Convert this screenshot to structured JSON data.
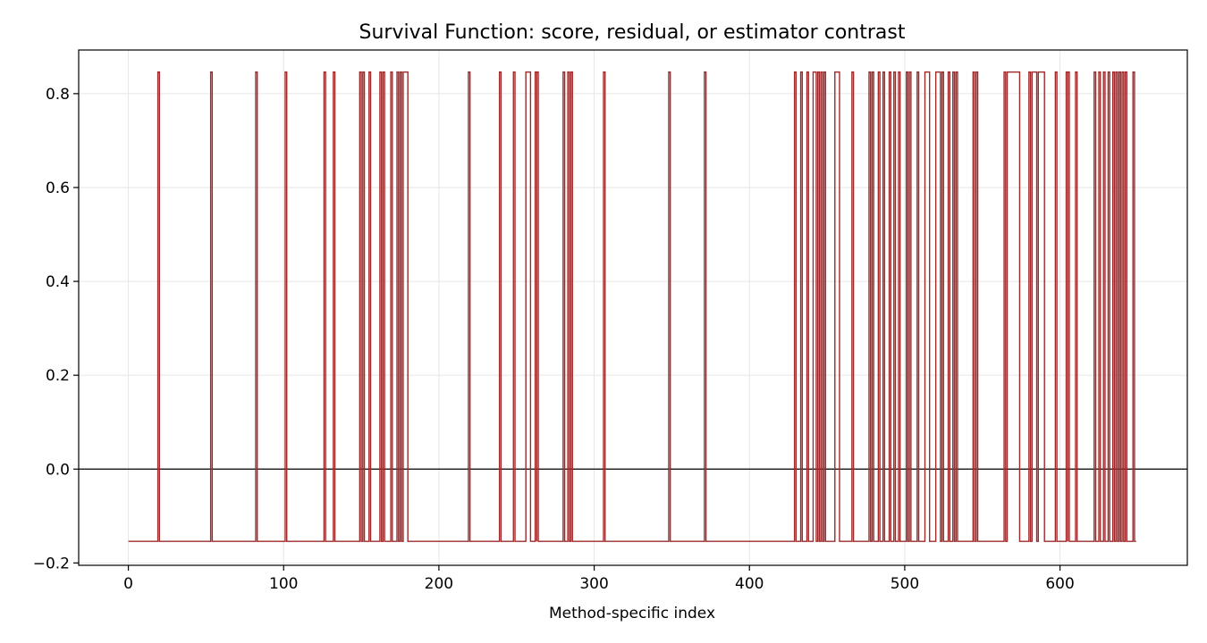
{
  "chart_data": {
    "type": "line",
    "title": "Survival Function: score, residual, or estimator contrast",
    "xlabel": "Method-specific index",
    "ylabel": "",
    "xlim": [
      -32,
      682
    ],
    "ylim": [
      -0.205,
      0.893
    ],
    "x_ticks": [
      0,
      100,
      200,
      300,
      400,
      500,
      600
    ],
    "x_tick_labels": [
      "0",
      "100",
      "200",
      "300",
      "400",
      "500",
      "600"
    ],
    "y_ticks": [
      -0.2,
      0.0,
      0.2,
      0.4,
      0.6,
      0.8
    ],
    "y_tick_labels": [
      "−0.2",
      "0.0",
      "0.2",
      "0.4",
      "0.6",
      "0.8"
    ],
    "grid": true,
    "reference_line_y": 0.0,
    "series_color": "#9e2a2b",
    "low_value": -0.154,
    "high_value": 0.846,
    "x_range": [
      0,
      649
    ],
    "high_runs": [
      [
        19,
        20
      ],
      [
        53,
        54
      ],
      [
        82,
        83
      ],
      [
        101,
        102
      ],
      [
        126,
        127
      ],
      [
        132,
        133
      ],
      [
        149,
        150
      ],
      [
        151,
        152
      ],
      [
        155,
        156
      ],
      [
        162,
        163
      ],
      [
        164,
        165
      ],
      [
        169,
        170
      ],
      [
        173,
        174
      ],
      [
        175,
        176
      ],
      [
        177,
        180
      ],
      [
        219,
        220
      ],
      [
        239,
        240
      ],
      [
        248,
        249
      ],
      [
        256,
        259
      ],
      [
        262,
        263
      ],
      [
        263,
        264
      ],
      [
        280,
        281
      ],
      [
        283,
        284
      ],
      [
        285,
        286
      ],
      [
        306,
        307
      ],
      [
        348,
        349
      ],
      [
        371,
        372
      ],
      [
        429,
        430
      ],
      [
        433,
        434
      ],
      [
        437,
        438
      ],
      [
        441,
        443
      ],
      [
        444,
        445
      ],
      [
        446,
        447
      ],
      [
        448,
        449
      ],
      [
        455,
        458
      ],
      [
        466,
        467
      ],
      [
        477,
        478
      ],
      [
        479,
        480
      ],
      [
        483,
        484
      ],
      [
        486,
        487
      ],
      [
        490,
        491
      ],
      [
        493,
        494
      ],
      [
        496,
        497
      ],
      [
        501,
        502
      ],
      [
        503,
        504
      ],
      [
        508,
        509
      ],
      [
        513,
        516
      ],
      [
        520,
        523
      ],
      [
        524,
        525
      ],
      [
        528,
        529
      ],
      [
        531,
        532
      ],
      [
        533,
        534
      ],
      [
        544,
        545
      ],
      [
        546,
        547
      ],
      [
        564,
        565
      ],
      [
        566,
        574
      ],
      [
        580,
        581
      ],
      [
        582,
        585
      ],
      [
        586,
        590
      ],
      [
        597,
        598
      ],
      [
        604,
        605
      ],
      [
        605,
        606
      ],
      [
        610,
        611
      ],
      [
        622,
        623
      ],
      [
        625,
        626
      ],
      [
        628,
        629
      ],
      [
        631,
        632
      ],
      [
        634,
        635
      ],
      [
        636,
        637
      ],
      [
        638,
        639
      ],
      [
        640,
        641
      ],
      [
        642,
        643
      ],
      [
        647,
        648
      ]
    ]
  }
}
